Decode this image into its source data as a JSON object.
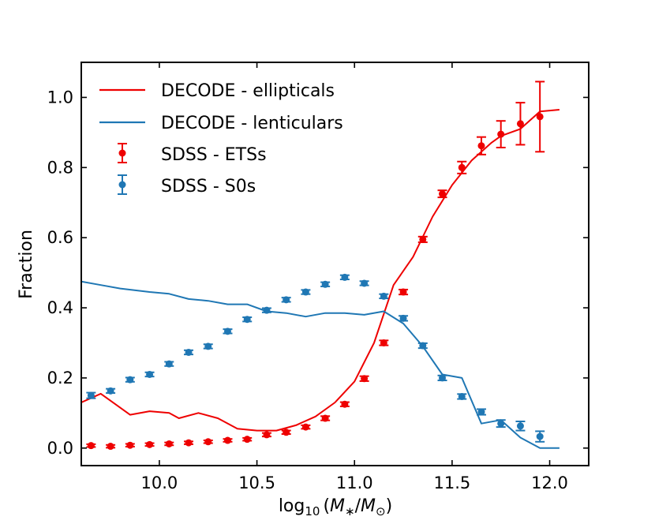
{
  "chart_data": {
    "type": "line",
    "title": "",
    "xlabel": "log10(M*/M⊙)",
    "xlabel_parts": {
      "base": "log",
      "sub10": "10",
      "open": "(",
      "m1": "M",
      "star": "∗",
      "slash": "/",
      "m2": "M",
      "odot": "⊙",
      "close": ")"
    },
    "ylabel": "Fraction",
    "xlim": [
      9.6,
      12.2
    ],
    "ylim": [
      -0.05,
      1.1
    ],
    "xticks": [
      10.0,
      10.5,
      11.0,
      11.5,
      12.0
    ],
    "xtick_labels": [
      "10.0",
      "10.5",
      "11.0",
      "11.5",
      "12.0"
    ],
    "yticks": [
      0.0,
      0.2,
      0.4,
      0.6,
      0.8,
      1.0
    ],
    "ytick_labels": [
      "0.0",
      "0.2",
      "0.4",
      "0.6",
      "0.8",
      "1.0"
    ],
    "grid": false,
    "legend_position": "top-left",
    "colors": {
      "red": "#ee0000",
      "blue": "#1f77b4"
    },
    "series": [
      {
        "name": "DECODE - ellipticals",
        "kind": "line",
        "color": "#ee0000",
        "x": [
          9.6,
          9.7,
          9.75,
          9.85,
          9.95,
          10.05,
          10.1,
          10.2,
          10.3,
          10.4,
          10.5,
          10.6,
          10.7,
          10.8,
          10.9,
          11.0,
          11.1,
          11.2,
          11.3,
          11.4,
          11.5,
          11.6,
          11.7,
          11.75,
          11.85,
          11.95,
          12.05
        ],
        "y": [
          0.13,
          0.155,
          0.135,
          0.095,
          0.105,
          0.1,
          0.085,
          0.1,
          0.085,
          0.055,
          0.05,
          0.05,
          0.065,
          0.09,
          0.13,
          0.19,
          0.3,
          0.465,
          0.545,
          0.66,
          0.75,
          0.82,
          0.87,
          0.89,
          0.91,
          0.96,
          0.965
        ]
      },
      {
        "name": "DECODE - lenticulars",
        "kind": "line",
        "color": "#1f77b4",
        "x": [
          9.6,
          9.7,
          9.8,
          9.95,
          10.05,
          10.15,
          10.25,
          10.35,
          10.45,
          10.55,
          10.65,
          10.75,
          10.85,
          10.95,
          11.05,
          11.15,
          11.25,
          11.35,
          11.45,
          11.55,
          11.65,
          11.75,
          11.85,
          11.95,
          12.05
        ],
        "y": [
          0.475,
          0.465,
          0.455,
          0.445,
          0.44,
          0.425,
          0.42,
          0.41,
          0.41,
          0.39,
          0.385,
          0.375,
          0.385,
          0.385,
          0.38,
          0.39,
          0.355,
          0.29,
          0.21,
          0.2,
          0.07,
          0.08,
          0.03,
          0.0,
          0.0
        ]
      },
      {
        "name": "SDSS - ETSs",
        "kind": "errorbar",
        "color": "#ee0000",
        "x": [
          9.65,
          9.75,
          9.85,
          9.95,
          10.05,
          10.15,
          10.25,
          10.35,
          10.45,
          10.55,
          10.65,
          10.75,
          10.85,
          10.95,
          11.05,
          11.15,
          11.25,
          11.35,
          11.45,
          11.55,
          11.65,
          11.75,
          11.85,
          11.95
        ],
        "y": [
          0.007,
          0.005,
          0.008,
          0.01,
          0.012,
          0.015,
          0.018,
          0.022,
          0.025,
          0.038,
          0.045,
          0.06,
          0.085,
          0.125,
          0.198,
          0.3,
          0.445,
          0.595,
          0.725,
          0.8,
          0.862,
          0.895,
          0.925,
          0.945
        ],
        "err": [
          0.004,
          0.004,
          0.004,
          0.004,
          0.004,
          0.004,
          0.004,
          0.004,
          0.004,
          0.005,
          0.005,
          0.005,
          0.006,
          0.006,
          0.007,
          0.007,
          0.007,
          0.008,
          0.01,
          0.017,
          0.025,
          0.038,
          0.06,
          0.1
        ]
      },
      {
        "name": "SDSS - S0s",
        "kind": "errorbar",
        "color": "#1f77b4",
        "x": [
          9.65,
          9.75,
          9.85,
          9.95,
          10.05,
          10.15,
          10.25,
          10.35,
          10.45,
          10.55,
          10.65,
          10.75,
          10.85,
          10.95,
          11.05,
          11.15,
          11.25,
          11.35,
          11.45,
          11.55,
          11.65,
          11.75,
          11.85,
          11.95
        ],
        "y": [
          0.15,
          0.163,
          0.195,
          0.21,
          0.24,
          0.273,
          0.29,
          0.333,
          0.367,
          0.393,
          0.423,
          0.445,
          0.467,
          0.487,
          0.47,
          0.433,
          0.37,
          0.292,
          0.2,
          0.147,
          0.103,
          0.07,
          0.063,
          0.033
        ],
        "err": [
          0.008,
          0.006,
          0.006,
          0.006,
          0.006,
          0.006,
          0.006,
          0.006,
          0.006,
          0.006,
          0.006,
          0.006,
          0.006,
          0.006,
          0.006,
          0.006,
          0.007,
          0.007,
          0.007,
          0.007,
          0.008,
          0.01,
          0.013,
          0.015
        ]
      }
    ]
  }
}
